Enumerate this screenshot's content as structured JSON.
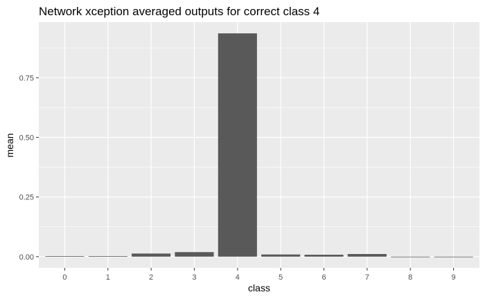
{
  "chart_data": {
    "type": "bar",
    "title": "Network xception averaged outputs for correct class 4",
    "xlabel": "class",
    "ylabel": "mean",
    "categories": [
      "0",
      "1",
      "2",
      "3",
      "4",
      "5",
      "6",
      "7",
      "8",
      "9"
    ],
    "values": [
      0.002,
      0.002,
      0.013,
      0.019,
      0.936,
      0.009,
      0.008,
      0.011,
      0.0,
      0.0
    ],
    "ylim": [
      -0.047,
      0.983
    ],
    "yticks": [
      {
        "value": 0.0,
        "label": "0.00"
      },
      {
        "value": 0.25,
        "label": "0.25"
      },
      {
        "value": 0.5,
        "label": "0.50"
      },
      {
        "value": 0.75,
        "label": "0.75"
      }
    ],
    "grid": true,
    "colors": {
      "panel": "#ebebeb",
      "grid": "#ffffff",
      "bar": "#595959",
      "tick_text": "#4d4d4d",
      "tick_mark": "#333333"
    }
  }
}
